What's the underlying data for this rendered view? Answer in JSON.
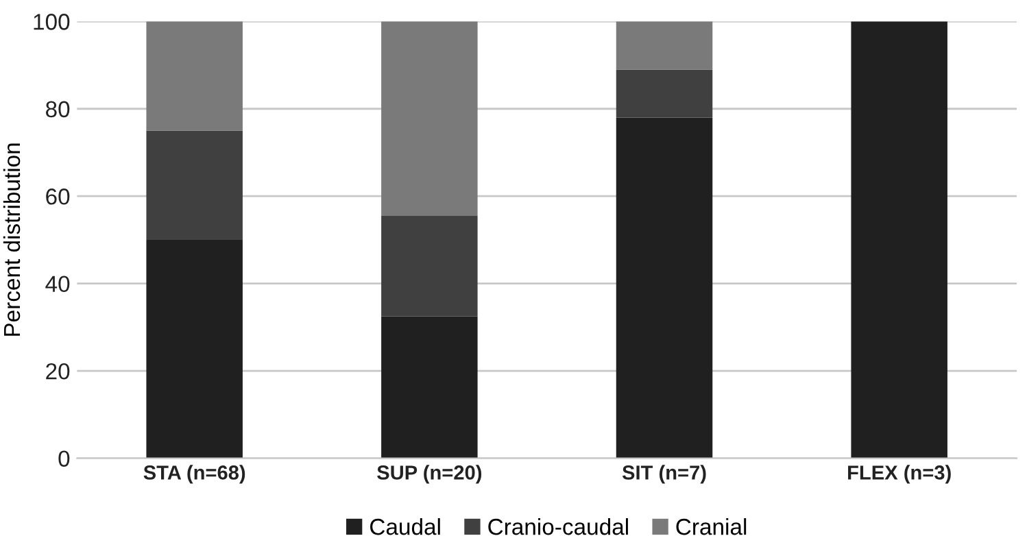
{
  "chart_data": {
    "type": "bar",
    "stacked": true,
    "ylabel": "Percent distribution",
    "categories": [
      "STA (n=68)",
      "SUP (n=20)",
      "SIT (n=7)",
      "FLEX (n=3)"
    ],
    "series": [
      {
        "name": "Caudal",
        "color": "#202020",
        "values": [
          50,
          32.5,
          78,
          100
        ]
      },
      {
        "name": "Cranio-caudal",
        "color": "#404040",
        "values": [
          25,
          23,
          11,
          0
        ]
      },
      {
        "name": "Cranial",
        "color": "#7a7a7a",
        "values": [
          25,
          44.5,
          11,
          0
        ]
      }
    ],
    "ylim": [
      0,
      100
    ],
    "yticks": [
      0,
      20,
      40,
      60,
      80,
      100
    ],
    "grid": "y",
    "legend": "bottom"
  }
}
